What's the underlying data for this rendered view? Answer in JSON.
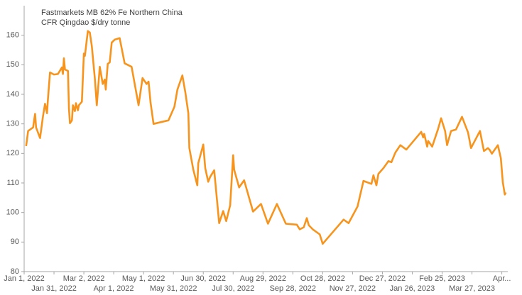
{
  "chart_data": {
    "type": "line",
    "title": "Fastmarkets MB 62% Fe Northern China",
    "subtitle": "CFR Qingdao $/dry tonne",
    "color": "#f7941d",
    "xlim": [
      "2022-01-01",
      "2023-05-02"
    ],
    "ylim": [
      80,
      170
    ],
    "yticks": [
      80,
      90,
      100,
      110,
      120,
      130,
      140,
      150,
      160
    ],
    "xticks": [
      {
        "value": "2022-01-01",
        "label": "Jan 1, 2022"
      },
      {
        "value": "2022-01-31",
        "label": "Jan 31, 2022"
      },
      {
        "value": "2022-03-02",
        "label": "Mar 2, 2022"
      },
      {
        "value": "2022-04-01",
        "label": "Apr 1, 2022"
      },
      {
        "value": "2022-05-01",
        "label": "May 1, 2022"
      },
      {
        "value": "2022-05-31",
        "label": "May 31, 2022"
      },
      {
        "value": "2022-06-30",
        "label": "Jun 30, 2022"
      },
      {
        "value": "2022-07-30",
        "label": "Jul 30, 2022"
      },
      {
        "value": "2022-08-29",
        "label": "Aug 29, 2022"
      },
      {
        "value": "2022-09-28",
        "label": "Sep 28, 2022"
      },
      {
        "value": "2022-10-28",
        "label": "Oct 28, 2022"
      },
      {
        "value": "2022-11-27",
        "label": "Nov 27, 2022"
      },
      {
        "value": "2022-12-27",
        "label": "Dec 27, 2022"
      },
      {
        "value": "2023-01-26",
        "label": "Jan 26, 2023"
      },
      {
        "value": "2023-02-25",
        "label": "Feb 25, 2023"
      },
      {
        "value": "2023-03-27",
        "label": "Mar 27, 2023"
      },
      {
        "value": "2023-04-26",
        "label": "Apr..."
      }
    ],
    "x": [
      "2022-01-03",
      "2022-01-05",
      "2022-01-10",
      "2022-01-12",
      "2022-01-13",
      "2022-01-17",
      "2022-01-20",
      "2022-01-22",
      "2022-01-24",
      "2022-01-25",
      "2022-01-27",
      "2022-01-31",
      "2022-02-04",
      "2022-02-08",
      "2022-02-09",
      "2022-02-10",
      "2022-02-11",
      "2022-02-14",
      "2022-02-15",
      "2022-02-16",
      "2022-02-18",
      "2022-02-19",
      "2022-02-21",
      "2022-02-22",
      "2022-02-24",
      "2022-02-25",
      "2022-02-28",
      "2022-03-02",
      "2022-03-03",
      "2022-03-06",
      "2022-03-08",
      "2022-03-10",
      "2022-03-13",
      "2022-03-15",
      "2022-03-18",
      "2022-03-21",
      "2022-03-23",
      "2022-03-24",
      "2022-03-26",
      "2022-03-28",
      "2022-03-30",
      "2022-04-02",
      "2022-04-07",
      "2022-04-12",
      "2022-04-19",
      "2022-04-26",
      "2022-04-30",
      "2022-05-04",
      "2022-05-06",
      "2022-05-08",
      "2022-05-11",
      "2022-05-26",
      "2022-06-01",
      "2022-06-04",
      "2022-06-09",
      "2022-06-12",
      "2022-06-15",
      "2022-06-16",
      "2022-06-20",
      "2022-06-24",
      "2022-06-25",
      "2022-06-30",
      "2022-07-02",
      "2022-07-05",
      "2022-07-07",
      "2022-07-11",
      "2022-07-16",
      "2022-07-20",
      "2022-07-23",
      "2022-07-27",
      "2022-07-30",
      "2022-07-31",
      "2022-08-05",
      "2022-08-10",
      "2022-08-19",
      "2022-08-27",
      "2022-09-03",
      "2022-09-12",
      "2022-09-21",
      "2022-10-02",
      "2022-10-05",
      "2022-10-09",
      "2022-10-12",
      "2022-10-14",
      "2022-10-18",
      "2022-10-25",
      "2022-10-28",
      "2022-11-18",
      "2022-11-23",
      "2022-12-02",
      "2022-12-08",
      "2022-12-16",
      "2022-12-18",
      "2022-12-21",
      "2022-12-23",
      "2022-12-28",
      "2023-01-02",
      "2023-01-05",
      "2023-01-09",
      "2023-01-14",
      "2023-01-20",
      "2023-02-04",
      "2023-02-06",
      "2023-02-07",
      "2023-02-10",
      "2023-02-11",
      "2023-02-15",
      "2023-02-21",
      "2023-02-24",
      "2023-02-28",
      "2023-03-02",
      "2023-03-06",
      "2023-03-11",
      "2023-03-17",
      "2023-03-23",
      "2023-03-26",
      "2023-04-04",
      "2023-04-08",
      "2023-04-12",
      "2023-04-14",
      "2023-04-16",
      "2023-04-22",
      "2023-04-25",
      "2023-04-27",
      "2023-04-29",
      "2023-04-30"
    ],
    "values": [
      122.5,
      127.6,
      128.8,
      133.4,
      128.8,
      125.2,
      132.7,
      136.8,
      133.6,
      138.7,
      147.4,
      146.7,
      146.9,
      149.1,
      146.9,
      152.2,
      148.4,
      147.9,
      135.1,
      130.2,
      131.2,
      136.3,
      134.3,
      137.0,
      134.6,
      136.3,
      137.5,
      153.8,
      153.0,
      161.4,
      160.9,
      156.3,
      145.5,
      136.3,
      149.3,
      143.5,
      145.0,
      141.6,
      150.3,
      150.8,
      157.5,
      158.5,
      159.0,
      150.5,
      149.3,
      136.3,
      145.5,
      143.5,
      144.3,
      137.2,
      130.0,
      131.2,
      135.8,
      141.6,
      146.4,
      140.6,
      133.6,
      121.8,
      114.5,
      109.2,
      116.7,
      123.0,
      115.0,
      110.4,
      112.1,
      114.3,
      96.4,
      100.5,
      97.1,
      102.5,
      119.4,
      114.5,
      108.5,
      110.9,
      100.3,
      102.9,
      96.2,
      102.9,
      96.2,
      95.9,
      94.3,
      95.0,
      98.1,
      95.7,
      94.3,
      92.6,
      89.4,
      97.6,
      96.4,
      102.0,
      110.7,
      109.7,
      112.6,
      109.2,
      113.1,
      115.0,
      117.4,
      117.0,
      120.3,
      122.8,
      121.3,
      127.3,
      125.4,
      126.6,
      122.3,
      124.2,
      122.3,
      128.3,
      131.9,
      127.6,
      122.8,
      127.6,
      128.1,
      132.4,
      127.1,
      121.8,
      127.6,
      120.8,
      121.8,
      121.1,
      119.9,
      122.8,
      118.4,
      110.2,
      106.1,
      106.8
    ]
  }
}
